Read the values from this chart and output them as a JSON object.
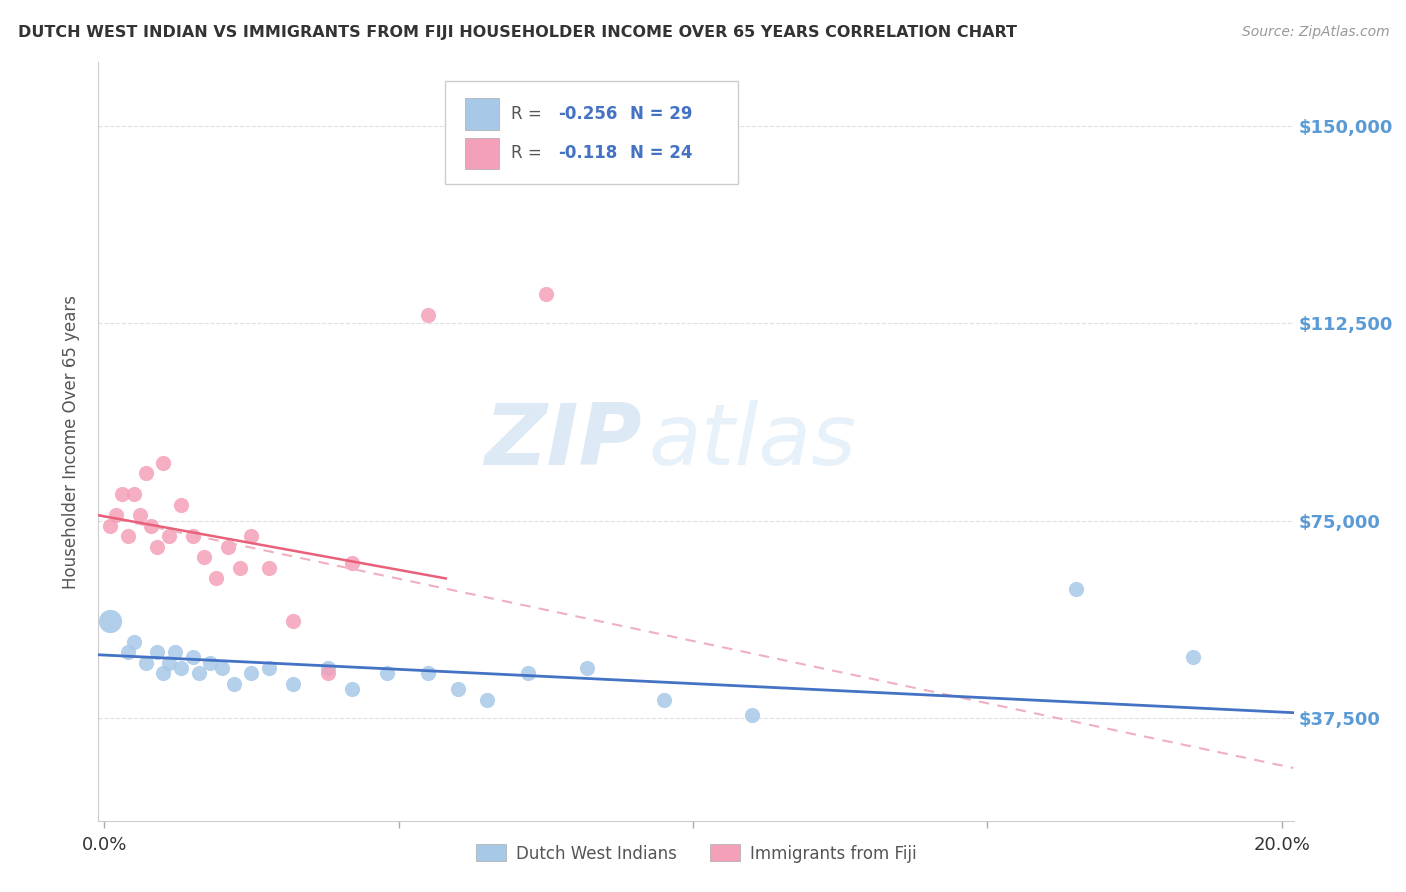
{
  "title": "DUTCH WEST INDIAN VS IMMIGRANTS FROM FIJI HOUSEHOLDER INCOME OVER 65 YEARS CORRELATION CHART",
  "source": "Source: ZipAtlas.com",
  "ylabel": "Householder Income Over 65 years",
  "ytick_labels": [
    "$150,000",
    "$112,500",
    "$75,000",
    "$37,500"
  ],
  "ytick_values": [
    150000,
    112500,
    75000,
    37500
  ],
  "ymin": 18000,
  "ymax": 162000,
  "xmin": -0.001,
  "xmax": 0.202,
  "legend1_r": "-0.256",
  "legend1_n": "29",
  "legend2_r": "-0.118",
  "legend2_n": "24",
  "blue_color": "#A8C8E8",
  "pink_color": "#F4A0B8",
  "trendline_blue": "#4472C4",
  "trendline_pink_solid": "#E8607A",
  "trendline_pink_dash": "#F0B0C0",
  "watermark_zip": "ZIP",
  "watermark_atlas": "atlas",
  "blue_scatter_x": [
    0.001,
    0.004,
    0.005,
    0.007,
    0.009,
    0.01,
    0.011,
    0.012,
    0.013,
    0.015,
    0.016,
    0.018,
    0.02,
    0.022,
    0.025,
    0.028,
    0.032,
    0.038,
    0.042,
    0.048,
    0.055,
    0.06,
    0.065,
    0.072,
    0.082,
    0.095,
    0.11,
    0.165,
    0.185
  ],
  "blue_scatter_y": [
    56000,
    50000,
    52000,
    48000,
    50000,
    46000,
    48000,
    50000,
    47000,
    49000,
    46000,
    48000,
    47000,
    44000,
    46000,
    47000,
    44000,
    47000,
    43000,
    46000,
    46000,
    43000,
    41000,
    46000,
    47000,
    41000,
    38000,
    62000,
    49000
  ],
  "pink_scatter_x": [
    0.001,
    0.002,
    0.003,
    0.004,
    0.005,
    0.006,
    0.007,
    0.008,
    0.009,
    0.01,
    0.011,
    0.013,
    0.015,
    0.017,
    0.019,
    0.021,
    0.023,
    0.025,
    0.028,
    0.032,
    0.038,
    0.042,
    0.055,
    0.075
  ],
  "pink_scatter_y": [
    74000,
    76000,
    80000,
    72000,
    80000,
    76000,
    84000,
    74000,
    70000,
    86000,
    72000,
    78000,
    72000,
    68000,
    64000,
    70000,
    66000,
    72000,
    66000,
    56000,
    46000,
    67000,
    114000,
    118000
  ],
  "background_color": "#ffffff",
  "grid_color": "#e0e0e0"
}
